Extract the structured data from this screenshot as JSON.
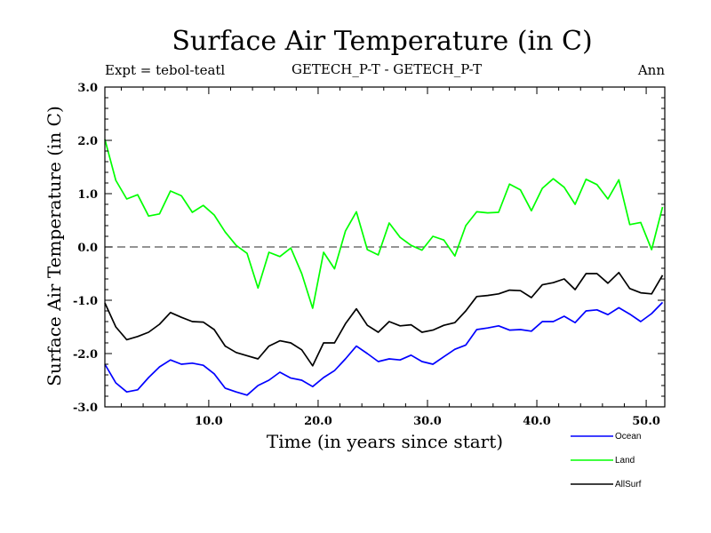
{
  "chart_data": {
    "type": "line",
    "title": "Surface Air Temperature (in C)",
    "left_subtitle": "Expt = tebol-teatl",
    "center_subtitle": "GETECH_P-T - GETECH_P-T",
    "right_subtitle": "Ann",
    "xlabel": "Time (in years since start)",
    "ylabel": "Surface Air Temperature (in C)",
    "xlim": [
      0.5,
      51.7
    ],
    "ylim": [
      -3.0,
      3.0
    ],
    "xticks": [
      10.0,
      20.0,
      30.0,
      40.0,
      50.0
    ],
    "xtick_labels": [
      "10.0",
      "20.0",
      "30.0",
      "40.0",
      "50.0"
    ],
    "yticks": [
      -3.0,
      -2.0,
      -1.0,
      0.0,
      1.0,
      2.0,
      3.0
    ],
    "ytick_labels": [
      "-3.0",
      "-2.0",
      "-1.0",
      "0.0",
      "1.0",
      "2.0",
      "3.0"
    ],
    "reference_line": 0.0,
    "x": [
      0.5,
      1.5,
      2.5,
      3.5,
      4.5,
      5.5,
      6.5,
      7.5,
      8.5,
      9.5,
      10.5,
      11.5,
      12.5,
      13.5,
      14.5,
      15.5,
      16.5,
      17.5,
      18.5,
      19.5,
      20.5,
      21.5,
      22.5,
      23.5,
      24.5,
      25.5,
      26.5,
      27.5,
      28.5,
      29.5,
      30.5,
      31.5,
      32.5,
      33.5,
      34.5,
      35.5,
      36.5,
      37.5,
      38.5,
      39.5,
      40.5,
      41.5,
      42.5,
      43.5,
      44.5,
      45.5,
      46.5,
      47.5,
      48.5,
      49.5,
      50.5,
      51.5
    ],
    "series": [
      {
        "name": "Ocean",
        "color": "#0000ff",
        "values": [
          -2.2,
          -2.55,
          -2.72,
          -2.68,
          -2.45,
          -2.25,
          -2.12,
          -2.2,
          -2.18,
          -2.22,
          -2.38,
          -2.65,
          -2.72,
          -2.78,
          -2.6,
          -2.5,
          -2.35,
          -2.46,
          -2.5,
          -2.62,
          -2.45,
          -2.32,
          -2.1,
          -1.86,
          -2.0,
          -2.15,
          -2.1,
          -2.12,
          -2.03,
          -2.15,
          -2.2,
          -2.06,
          -1.92,
          -1.84,
          -1.55,
          -1.52,
          -1.48,
          -1.56,
          -1.55,
          -1.58,
          -1.4,
          -1.4,
          -1.3,
          -1.42,
          -1.2,
          -1.18,
          -1.27,
          -1.14,
          -1.26,
          -1.4,
          -1.25,
          -1.04
        ]
      },
      {
        "name": "Land",
        "color": "#00ff00",
        "values": [
          2.02,
          1.25,
          0.9,
          0.98,
          0.58,
          0.62,
          1.05,
          0.96,
          0.65,
          0.78,
          0.6,
          0.28,
          0.03,
          -0.12,
          -0.77,
          -0.1,
          -0.18,
          -0.02,
          -0.5,
          -1.15,
          -0.1,
          -0.41,
          0.3,
          0.66,
          -0.05,
          -0.15,
          0.45,
          0.18,
          0.03,
          -0.06,
          0.2,
          0.13,
          -0.17,
          0.4,
          0.66,
          0.64,
          0.65,
          1.18,
          1.07,
          0.68,
          1.1,
          1.28,
          1.12,
          0.8,
          1.27,
          1.17,
          0.9,
          1.26,
          0.42,
          0.46,
          -0.05,
          0.75
        ]
      },
      {
        "name": "AllSurf",
        "color": "#000000",
        "values": [
          -1.05,
          -1.5,
          -1.74,
          -1.68,
          -1.6,
          -1.45,
          -1.23,
          -1.32,
          -1.4,
          -1.41,
          -1.55,
          -1.86,
          -1.98,
          -2.04,
          -2.1,
          -1.86,
          -1.76,
          -1.8,
          -1.93,
          -2.23,
          -1.8,
          -1.8,
          -1.44,
          -1.16,
          -1.47,
          -1.6,
          -1.4,
          -1.48,
          -1.46,
          -1.6,
          -1.56,
          -1.47,
          -1.42,
          -1.2,
          -0.93,
          -0.91,
          -0.88,
          -0.81,
          -0.82,
          -0.95,
          -0.71,
          -0.67,
          -0.6,
          -0.8,
          -0.5,
          -0.5,
          -0.68,
          -0.48,
          -0.78,
          -0.86,
          -0.88,
          -0.53
        ]
      }
    ]
  }
}
